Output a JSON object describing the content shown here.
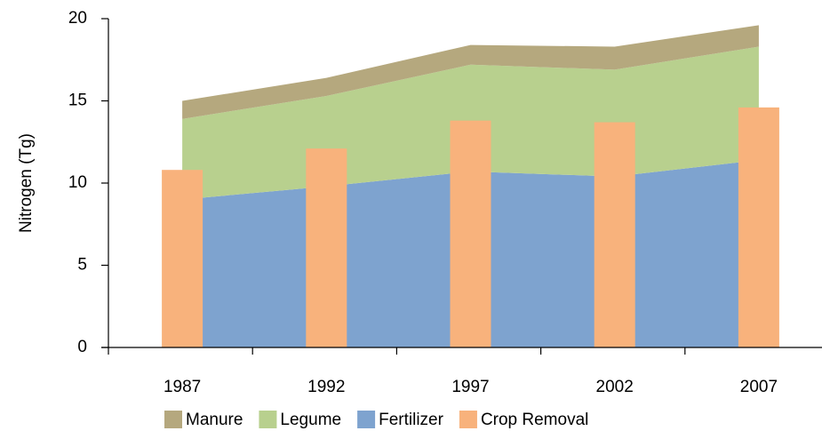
{
  "chart_data": {
    "type": "stacked_area_bar",
    "y_label": "Nitrogen (Tg)",
    "categories": [
      "1987",
      "1992",
      "1997",
      "2002",
      "2007"
    ],
    "series": [
      {
        "name": "Manure",
        "color": "#b5a87e",
        "kind": "area",
        "values": [
          1.1,
          1.1,
          1.2,
          1.4,
          1.3
        ]
      },
      {
        "name": "Legume",
        "color": "#b8d08e",
        "kind": "area",
        "values": [
          4.9,
          5.5,
          6.5,
          6.5,
          6.9
        ]
      },
      {
        "name": "Fertilizer",
        "color": "#7ea3cf",
        "kind": "area",
        "values": [
          9.0,
          9.8,
          10.7,
          10.4,
          11.4
        ]
      },
      {
        "name": "Crop Removal",
        "color": "#f8b27c",
        "kind": "bar",
        "values": [
          10.8,
          12.1,
          13.8,
          13.7,
          14.6
        ]
      }
    ],
    "ylim": [
      0,
      20
    ],
    "yticks": [
      0,
      5,
      10,
      15,
      20
    ],
    "grid": false,
    "legend": "bottom"
  }
}
